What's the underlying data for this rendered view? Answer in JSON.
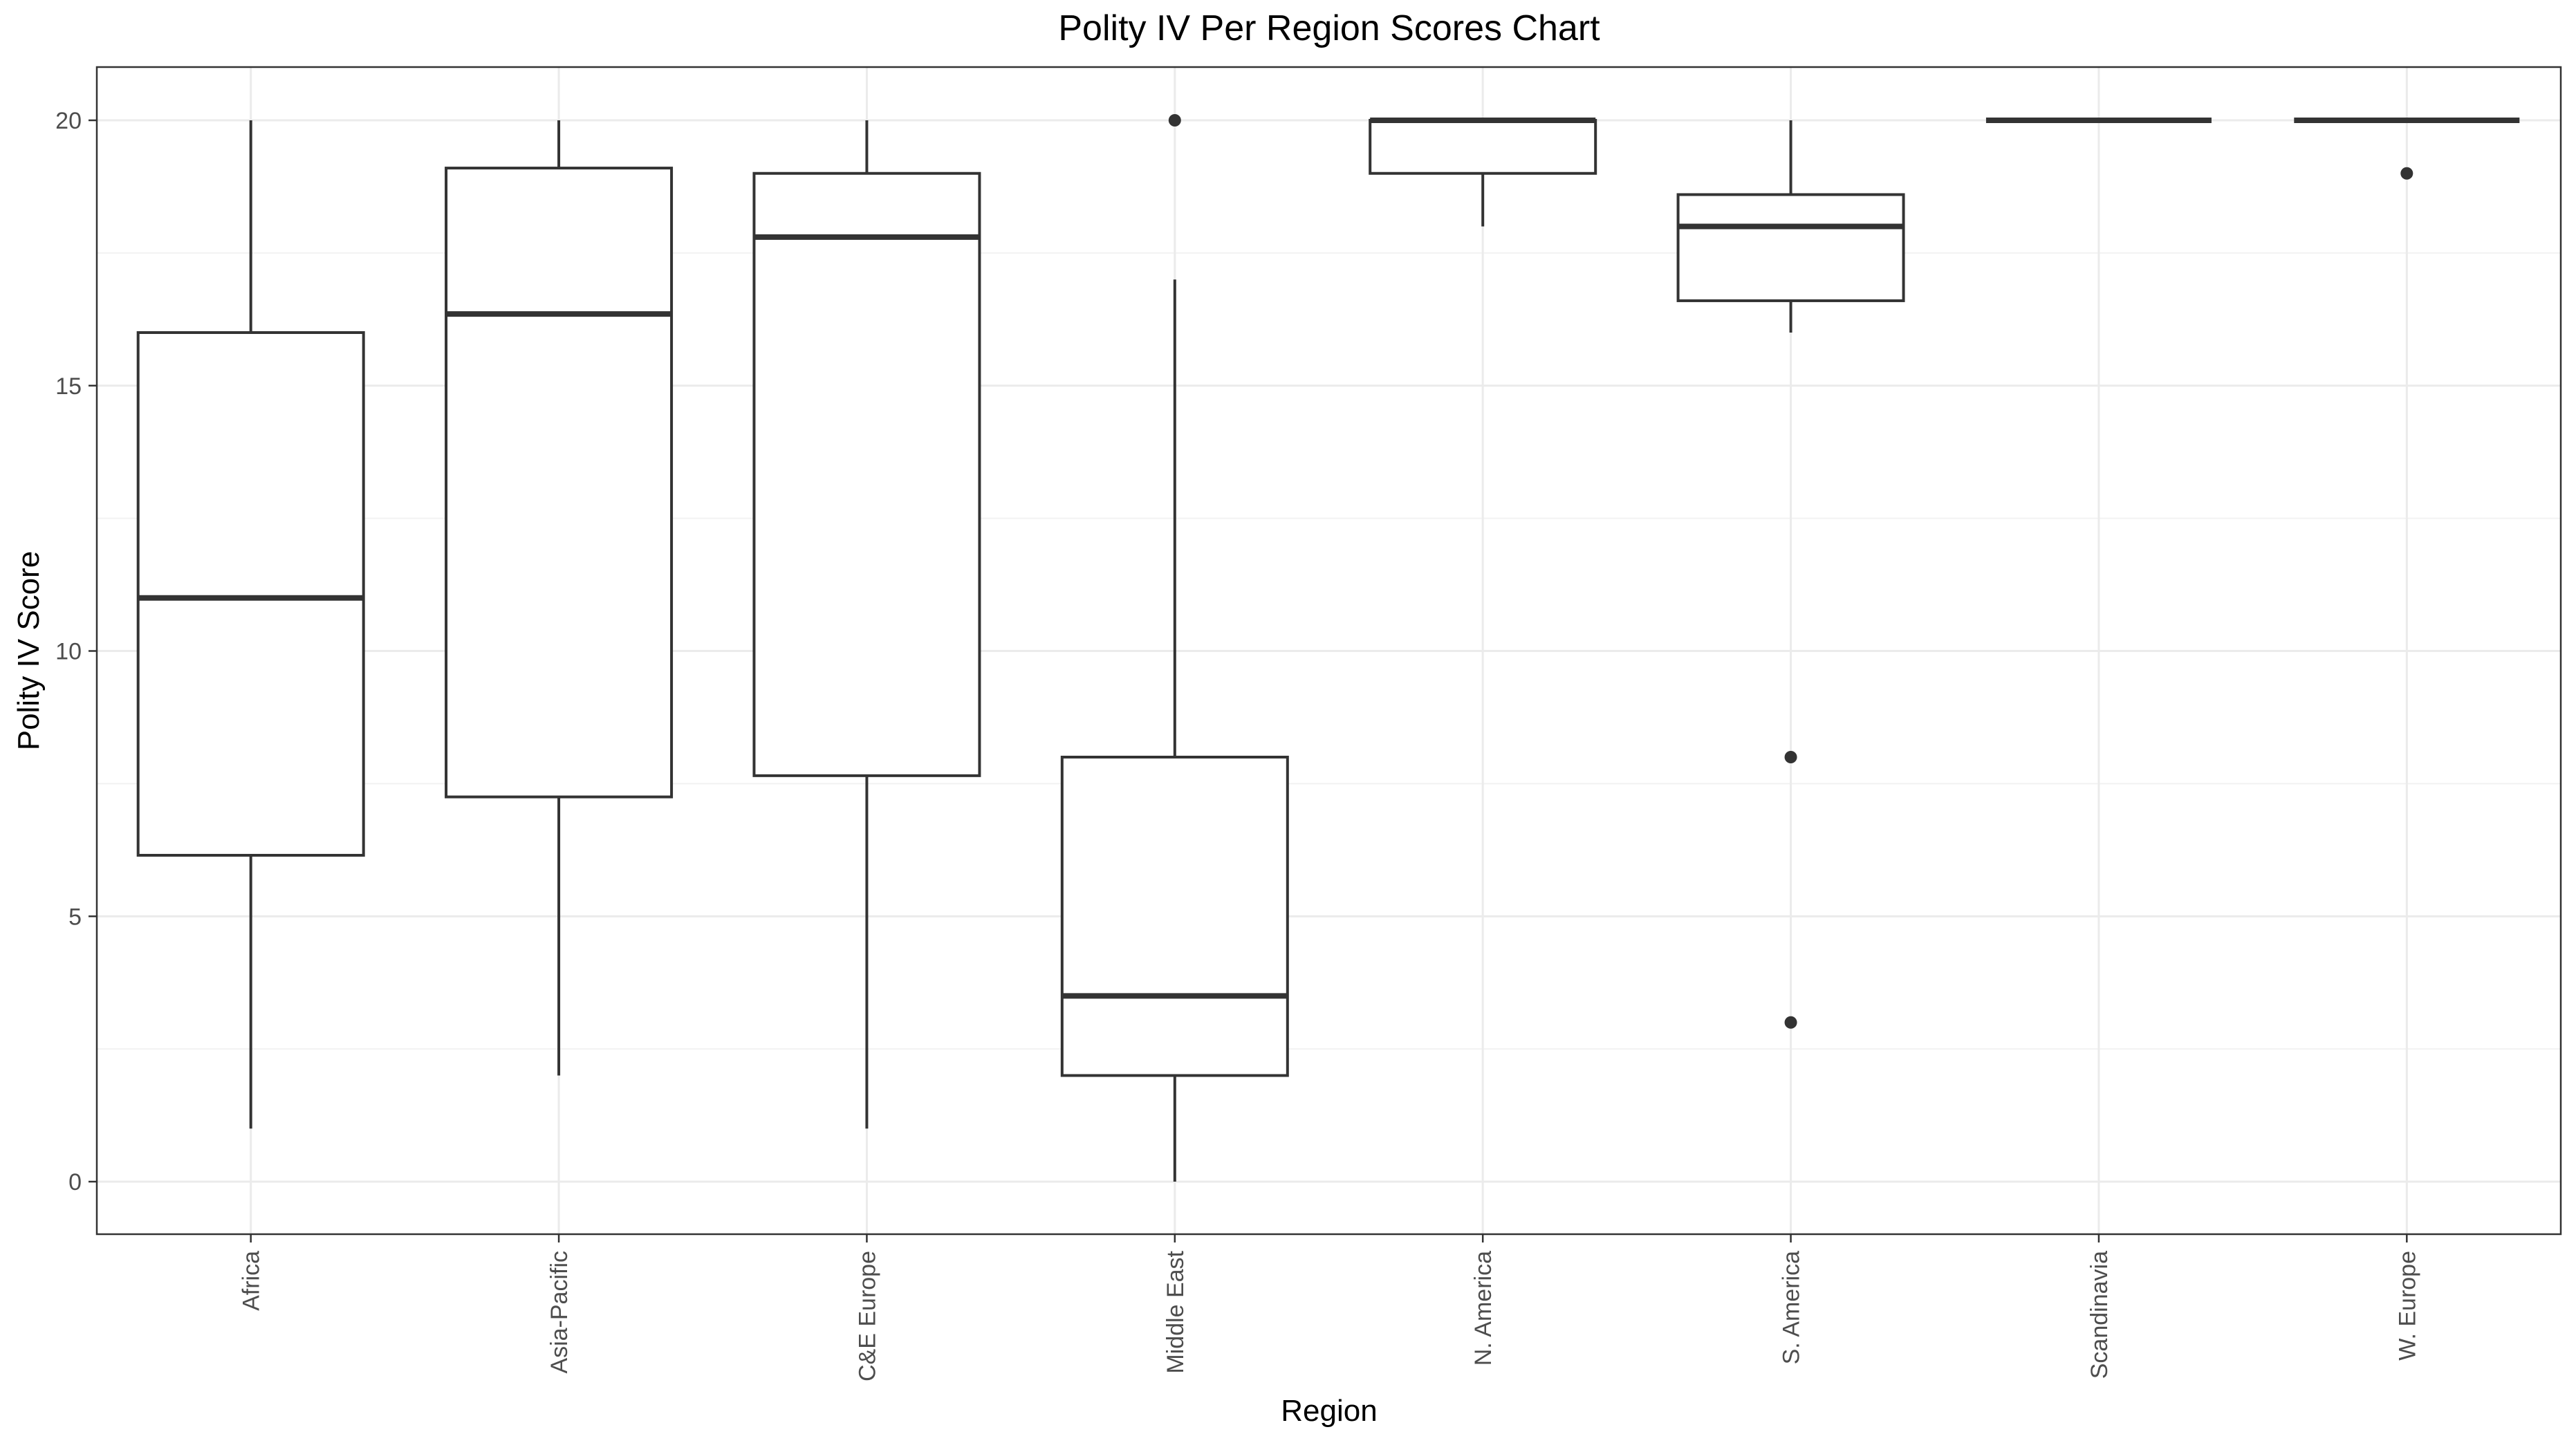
{
  "chart_data": {
    "type": "boxplot",
    "title": "Polity IV Per Region Scores Chart",
    "xlabel": "Region",
    "ylabel": "Polity IV Score",
    "ylim": [
      -1,
      21
    ],
    "yticks": [
      0,
      5,
      10,
      15,
      20
    ],
    "grid": true,
    "categories": [
      "Africa",
      "Asia-Pacific",
      "C&E Europe",
      "Middle East",
      "N. America",
      "S. America",
      "Scandinavia",
      "W. Europe"
    ],
    "boxes": [
      {
        "category": "Africa",
        "whisker_low": 1,
        "q1": 6.15,
        "median": 11,
        "q3": 16,
        "whisker_high": 20,
        "outliers": []
      },
      {
        "category": "Asia-Pacific",
        "whisker_low": 2,
        "q1": 7.25,
        "median": 16.35,
        "q3": 19.1,
        "whisker_high": 20,
        "outliers": []
      },
      {
        "category": "C&E Europe",
        "whisker_low": 1,
        "q1": 7.65,
        "median": 17.8,
        "q3": 19,
        "whisker_high": 20,
        "outliers": []
      },
      {
        "category": "Middle East",
        "whisker_low": 0,
        "q1": 2,
        "median": 3.5,
        "q3": 8,
        "whisker_high": 17,
        "outliers": [
          20
        ]
      },
      {
        "category": "N. America",
        "whisker_low": 18,
        "q1": 19,
        "median": 20,
        "q3": 20,
        "whisker_high": 20,
        "outliers": []
      },
      {
        "category": "S. America",
        "whisker_low": 16,
        "q1": 16.6,
        "median": 18,
        "q3": 18.6,
        "whisker_high": 20,
        "outliers": [
          8,
          3
        ]
      },
      {
        "category": "Scandinavia",
        "whisker_low": 20,
        "q1": 20,
        "median": 20,
        "q3": 20,
        "whisker_high": 20,
        "outliers": []
      },
      {
        "category": "W. Europe",
        "whisker_low": 20,
        "q1": 20,
        "median": 20,
        "q3": 20,
        "whisker_high": 20,
        "outliers": [
          19
        ]
      }
    ],
    "colors": {
      "box_stroke": "#333333",
      "box_fill": "#ffffff",
      "grid_major": "#ebebeb",
      "grid_minor": "#f2f2f2",
      "panel_border": "#333333",
      "tick_label": "#4d4d4d",
      "text": "#000000"
    }
  }
}
